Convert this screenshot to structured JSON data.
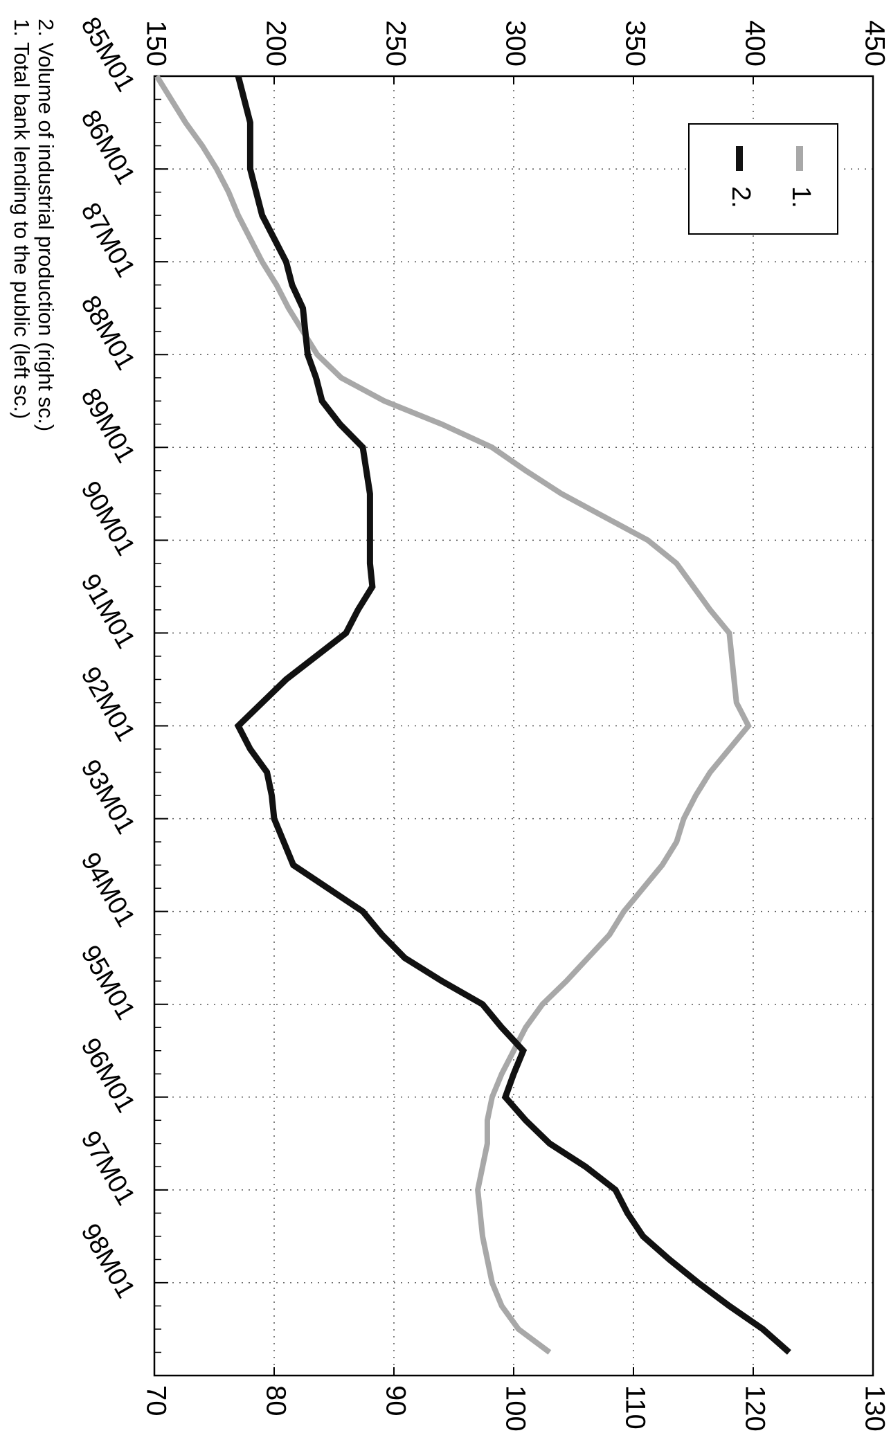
{
  "chart_data": {
    "type": "line",
    "categories": [
      "85M01",
      null,
      null,
      null,
      "86M01",
      null,
      null,
      null,
      "87M01",
      null,
      null,
      null,
      "88M01",
      null,
      null,
      null,
      "89M01",
      null,
      null,
      null,
      "90M01",
      null,
      null,
      null,
      "91M01",
      null,
      null,
      null,
      "92M01",
      null,
      null,
      null,
      "93M01",
      null,
      null,
      null,
      "94M01",
      null,
      null,
      null,
      "95M01",
      null,
      null,
      null,
      "96M01",
      null,
      null,
      null,
      "97M01",
      null,
      null,
      null,
      "98M01",
      null,
      null,
      null
    ],
    "series": [
      {
        "name": "1.",
        "color": "#a8a8a8",
        "axis": "y",
        "values": [
          151,
          157,
          163,
          170,
          176,
          181,
          185,
          190,
          195,
          201,
          206,
          212,
          218,
          228,
          246,
          270,
          291,
          305,
          320,
          338,
          356,
          368,
          375,
          382,
          390,
          391,
          392,
          393,
          398,
          390,
          382,
          376,
          371,
          368,
          362,
          354,
          346,
          340,
          331,
          322,
          312,
          305,
          300,
          295,
          291,
          289,
          289,
          287,
          285,
          286,
          287,
          289,
          291,
          295,
          302,
          315
        ]
      },
      {
        "name": "2.",
        "color": "#111111",
        "axis": "y2",
        "values": [
          77,
          77.5,
          78,
          78,
          78,
          78.5,
          79,
          80,
          81,
          81.5,
          82.4,
          82.6,
          82.8,
          83.5,
          84,
          85.5,
          87.4,
          87.7,
          88,
          88,
          88,
          88,
          88.2,
          87,
          86,
          83.5,
          81,
          79,
          77,
          78,
          79.4,
          79.8,
          80,
          80.8,
          81.6,
          84.5,
          87.4,
          89,
          90.9,
          94,
          97.4,
          99,
          100.8,
          100,
          99.3,
          101,
          103,
          106,
          108.5,
          109.5,
          110.8,
          113,
          115.4,
          118,
          120.8,
          123
        ]
      }
    ],
    "ylim": [
      150,
      450
    ],
    "yticks": [
      150,
      200,
      250,
      300,
      350,
      400,
      450
    ],
    "y2lim": [
      70,
      130
    ],
    "y2ticks": [
      70,
      80,
      90,
      100,
      110,
      120,
      130
    ],
    "grid": true,
    "legend": "upper left",
    "annotations": [
      "1. Total bank lending to the public (left sc.)",
      "2. Volume of industrial production (right sc.)"
    ]
  }
}
